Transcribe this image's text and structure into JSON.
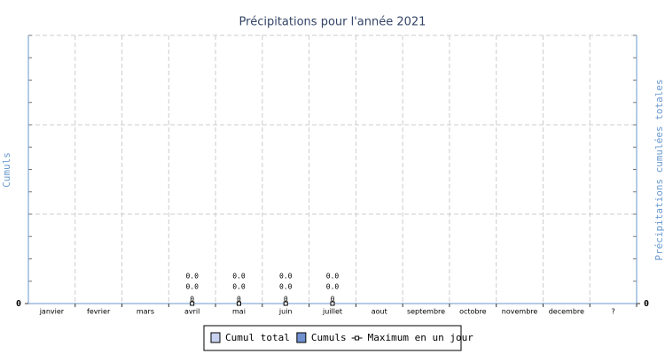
{
  "chart_data": {
    "type": "bar",
    "title": "Précipitations pour l'année 2021",
    "y_label": "Cumuls",
    "y2_label": "Précipitations cumulées totales",
    "categories": [
      "janvier",
      "fevrier",
      "mars",
      "avril",
      "mai",
      "juin",
      "juillet",
      "aout",
      "septembre",
      "octobre",
      "novembre",
      "decembre",
      "?"
    ],
    "series": [
      {
        "name": "Cumul total",
        "color": "#c8d2f0",
        "axis": "y2",
        "values": [
          null,
          null,
          null,
          0,
          0,
          0,
          0,
          null,
          null,
          null,
          null,
          null,
          null
        ],
        "value_labels": [
          null,
          null,
          null,
          "0.0",
          "0.0",
          "0.0",
          "0.0",
          null,
          null,
          null,
          null,
          null,
          null
        ]
      },
      {
        "name": "Cumuls",
        "color": "#7090d0",
        "values": [
          null,
          null,
          null,
          0,
          0,
          0,
          0,
          null,
          null,
          null,
          null,
          null,
          null
        ],
        "value_labels": [
          null,
          null,
          null,
          "0.0",
          "0.0",
          "0.0",
          "0.0",
          null,
          null,
          null,
          null,
          null,
          null
        ]
      },
      {
        "name": "Maximum en un jour",
        "color": "#000000",
        "kind": "line",
        "values": [
          null,
          null,
          null,
          0,
          0,
          0,
          0,
          null,
          null,
          null,
          null,
          null,
          null
        ],
        "value_labels": [
          null,
          null,
          null,
          "0",
          "0",
          "0",
          "0",
          null,
          null,
          null,
          null,
          null,
          null
        ]
      }
    ],
    "ylim": [
      0,
      3
    ],
    "yticks": [
      0
    ],
    "ygrid": [
      1,
      2,
      3
    ],
    "y2lim": [
      0,
      3
    ],
    "y2ticks": [
      0
    ],
    "grid": true,
    "legend": "bottom",
    "axis_color": "#6a9ad0"
  }
}
